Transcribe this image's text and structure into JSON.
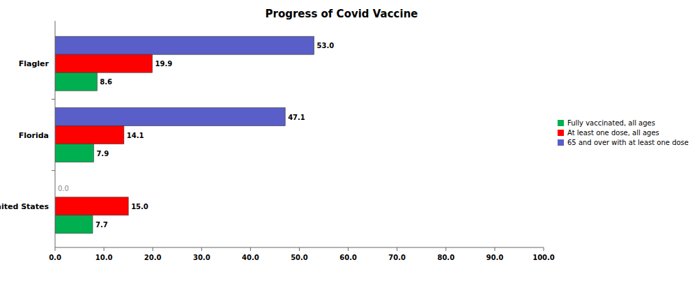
{
  "chart_data": {
    "type": "bar",
    "orientation": "horizontal",
    "title": "Progress of Covid Vaccine",
    "categories": [
      "Flagler",
      "Florida",
      "United States"
    ],
    "series": [
      {
        "name": "Fully vaccinated, all ages",
        "color": "#00b050",
        "values": [
          8.6,
          7.9,
          7.7
        ],
        "value_labels": [
          "8.6",
          "7.9",
          "7.7"
        ]
      },
      {
        "name": "At least one dose, all ages",
        "color": "#ff0000",
        "values": [
          19.9,
          14.1,
          15.0
        ],
        "value_labels": [
          "19.9",
          "14.1",
          "15.0"
        ]
      },
      {
        "name": "65 and over with at least one dose",
        "color": "#5a5ec8",
        "values": [
          53.0,
          47.1,
          0.0
        ],
        "value_labels": [
          "53.0",
          "47.1",
          "0.0"
        ]
      }
    ],
    "xlim": [
      0,
      100
    ],
    "xticks": [
      {
        "value": 0,
        "label": "0.0"
      },
      {
        "value": 10,
        "label": "10.0"
      },
      {
        "value": 20,
        "label": "20.0"
      },
      {
        "value": 30,
        "label": "30.0"
      },
      {
        "value": 40,
        "label": "40.0"
      },
      {
        "value": 50,
        "label": "50.0"
      },
      {
        "value": 60,
        "label": "60.0"
      },
      {
        "value": 70,
        "label": "70.0"
      },
      {
        "value": 80,
        "label": "80.0"
      },
      {
        "value": 90,
        "label": "90.0"
      },
      {
        "value": 100,
        "label": "100.0"
      }
    ],
    "grid": false,
    "legend": "right",
    "data_labels": true
  }
}
